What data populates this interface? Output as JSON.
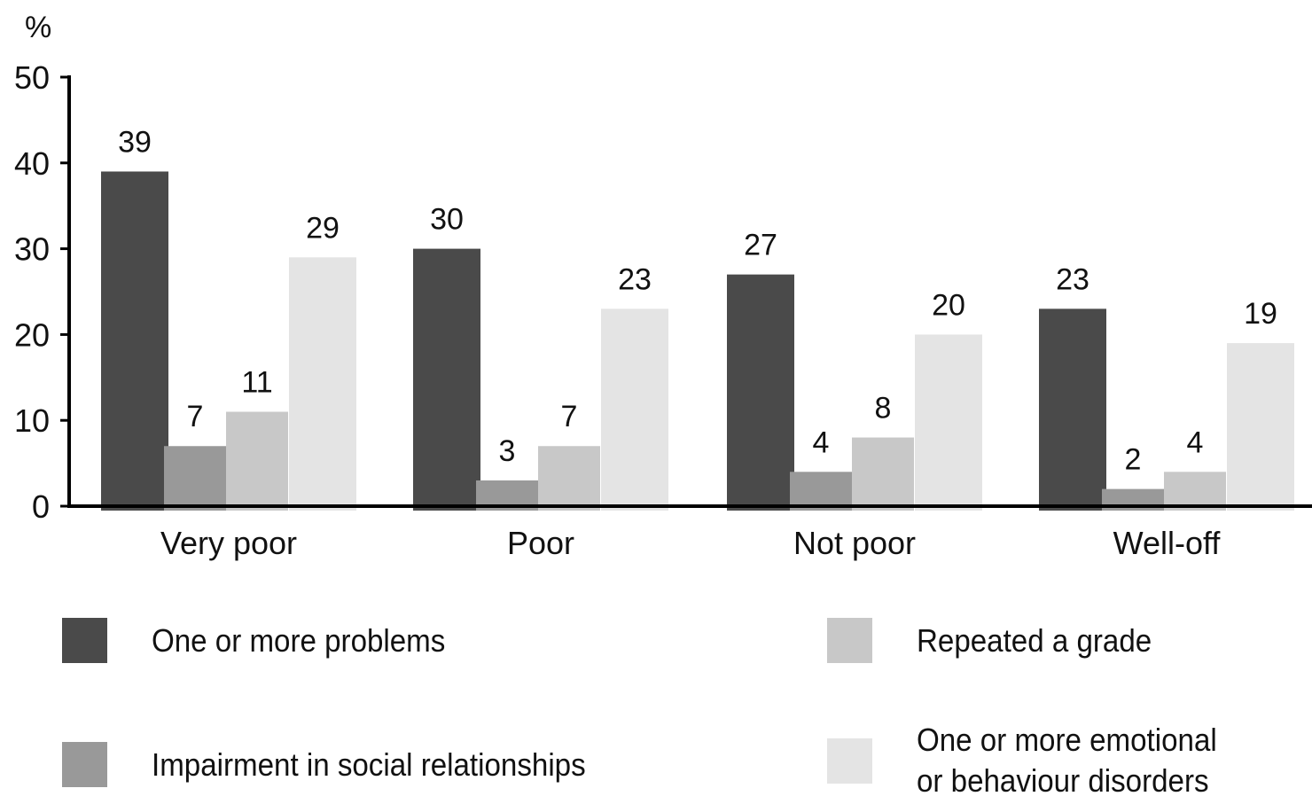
{
  "chart_data": {
    "type": "bar",
    "ylabel": "%",
    "ylim": [
      0,
      50
    ],
    "yticks": [
      0,
      10,
      20,
      30,
      40,
      50
    ],
    "categories": [
      "Very poor",
      "Poor",
      "Not poor",
      "Well-off"
    ],
    "series": [
      {
        "name": "One or more problems",
        "color": "#4a4a4a",
        "values": [
          39,
          30,
          27,
          23
        ]
      },
      {
        "name": "Impairment in social relationships",
        "color": "#999999",
        "values": [
          7,
          3,
          4,
          2
        ]
      },
      {
        "name": "Repeated a grade",
        "color": "#c8c8c8",
        "values": [
          11,
          7,
          8,
          4
        ]
      },
      {
        "name": "One or more emotional\nor behaviour disorders",
        "color": "#e4e4e4",
        "values": [
          29,
          23,
          20,
          19
        ]
      }
    ],
    "data_labels": true,
    "legend_position": "bottom",
    "grid": false
  }
}
